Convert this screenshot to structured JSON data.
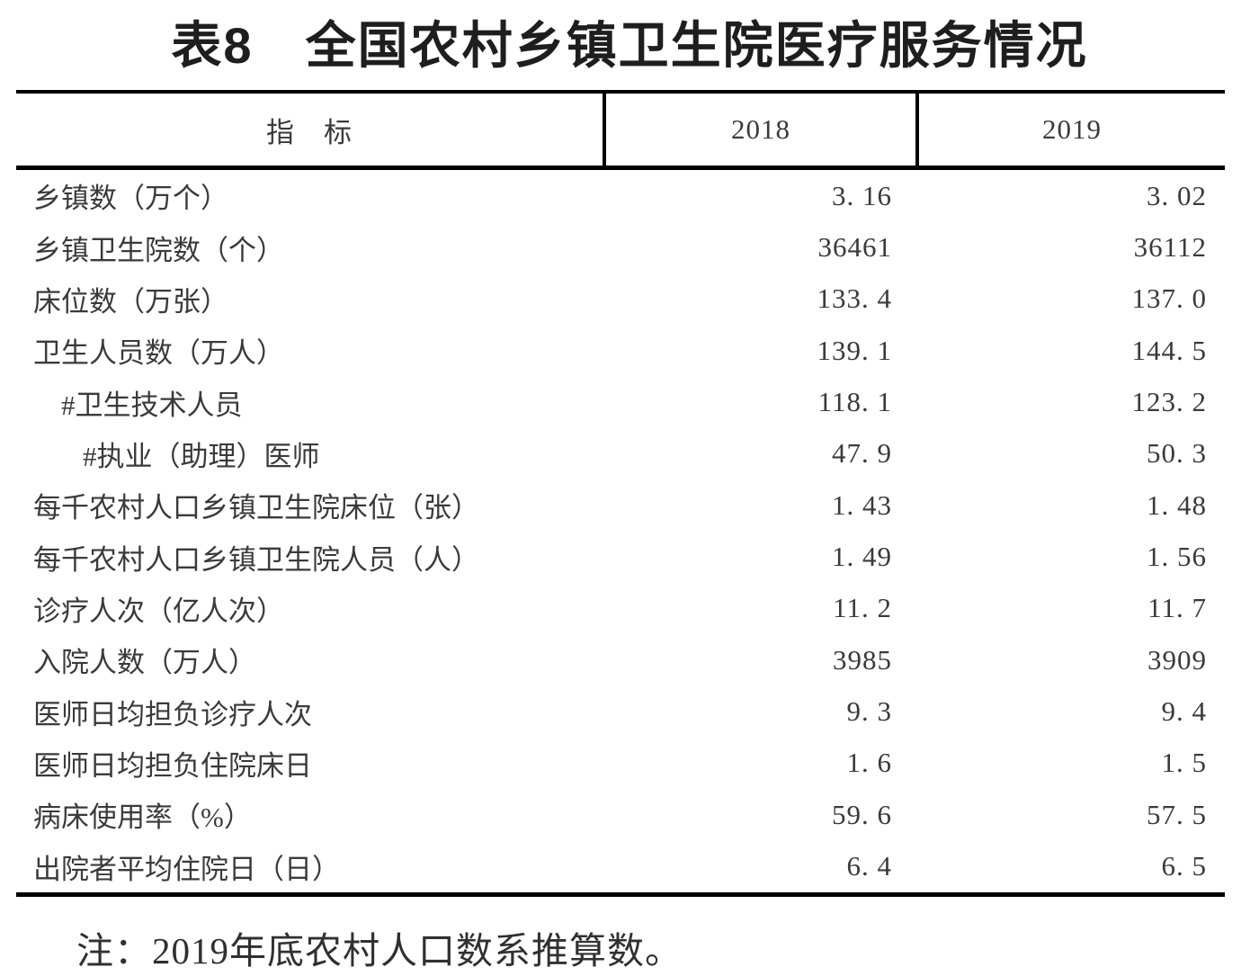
{
  "title": "表8　全国农村乡镇卫生院医疗服务情况",
  "table": {
    "header": {
      "indicator": "指　标",
      "year1": "2018",
      "year2": "2019"
    },
    "rows": [
      {
        "label": "乡镇数（万个）",
        "indent": 0,
        "v2018": "3. 16",
        "v2019": "3. 02"
      },
      {
        "label": "乡镇卫生院数（个）",
        "indent": 0,
        "v2018": "36461",
        "v2019": "36112"
      },
      {
        "label": "床位数（万张）",
        "indent": 0,
        "v2018": "133. 4",
        "v2019": "137. 0"
      },
      {
        "label": "卫生人员数（万人）",
        "indent": 0,
        "v2018": "139. 1",
        "v2019": "144. 5"
      },
      {
        "label": "#卫生技术人员",
        "indent": 1,
        "v2018": "118. 1",
        "v2019": "123. 2"
      },
      {
        "label": "#执业（助理）医师",
        "indent": 2,
        "v2018": "47. 9",
        "v2019": "50. 3"
      },
      {
        "label": "每千农村人口乡镇卫生院床位（张）",
        "indent": 0,
        "v2018": "1. 43",
        "v2019": "1. 48"
      },
      {
        "label": "每千农村人口乡镇卫生院人员（人）",
        "indent": 0,
        "v2018": "1. 49",
        "v2019": "1. 56"
      },
      {
        "label": "诊疗人次（亿人次）",
        "indent": 0,
        "v2018": "11. 2",
        "v2019": "11. 7"
      },
      {
        "label": "入院人数（万人）",
        "indent": 0,
        "v2018": "3985",
        "v2019": "3909"
      },
      {
        "label": "医师日均担负诊疗人次",
        "indent": 0,
        "v2018": "9. 3",
        "v2019": "9. 4"
      },
      {
        "label": "医师日均担负住院床日",
        "indent": 0,
        "v2018": "1. 6",
        "v2019": "1. 5"
      },
      {
        "label": "病床使用率（%）",
        "indent": 0,
        "v2018": "59. 6",
        "v2019": "57. 5"
      },
      {
        "label": "出院者平均住院日（日）",
        "indent": 0,
        "v2018": "6. 4",
        "v2019": "6. 5"
      }
    ]
  },
  "note": "注：2019年底农村人口数系推算数。"
}
